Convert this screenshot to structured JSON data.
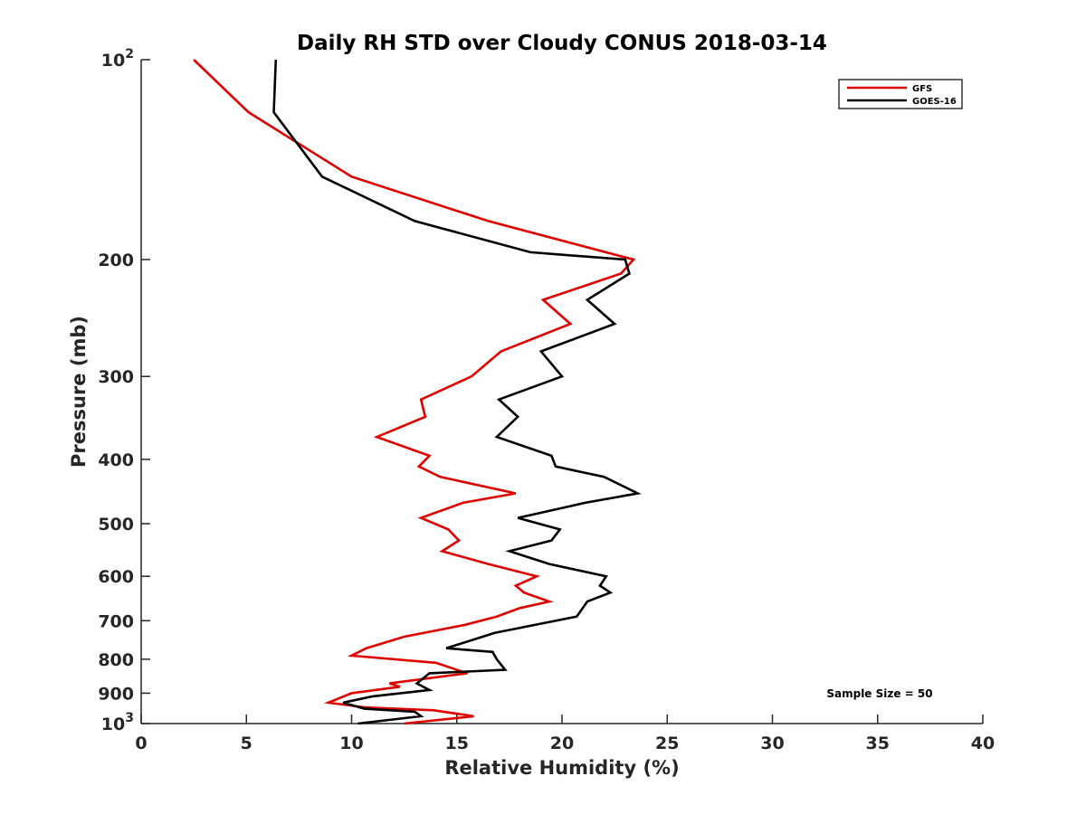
{
  "chart_data": {
    "type": "line",
    "title": "Daily RH STD over Cloudy CONUS 2018-03-14",
    "xlabel": "Relative Humidity (%)",
    "ylabel": "Pressure (mb)",
    "xlim": [
      0,
      40
    ],
    "ylim": [
      100,
      1000
    ],
    "y_scale": "log",
    "y_reversed": true,
    "grid": false,
    "legend_position": "top-right",
    "x_ticks": [
      "0",
      "5",
      "10",
      "15",
      "20",
      "25",
      "30",
      "35",
      "40"
    ],
    "y_ticks": [
      {
        "value": 100,
        "label": "10",
        "exp": "2"
      },
      {
        "value": 200,
        "label": "200",
        "exp": ""
      },
      {
        "value": 300,
        "label": "300",
        "exp": ""
      },
      {
        "value": 400,
        "label": "400",
        "exp": ""
      },
      {
        "value": 500,
        "label": "500",
        "exp": ""
      },
      {
        "value": 600,
        "label": "600",
        "exp": ""
      },
      {
        "value": 700,
        "label": "700",
        "exp": ""
      },
      {
        "value": 800,
        "label": "800",
        "exp": ""
      },
      {
        "value": 900,
        "label": "900",
        "exp": ""
      },
      {
        "value": 1000,
        "label": "10",
        "exp": "3"
      }
    ],
    "annotation": "Sample Size = 50",
    "series": [
      {
        "name": "GFS",
        "color": "#e00000",
        "x": [
          2.5,
          5.1,
          10.0,
          16.5,
          23.4,
          22.8,
          19.1,
          20.4,
          17.1,
          15.7,
          13.3,
          13.5,
          11.2,
          13.7,
          13.2,
          14.2,
          17.8,
          15.3,
          13.3,
          14.6,
          15.1,
          14.3,
          16.5,
          18.8,
          17.8,
          18.2,
          19.4,
          18.0,
          16.9,
          15.4,
          12.5,
          10.7,
          10.0,
          14.0,
          15.5,
          11.8,
          12.3,
          10.0,
          8.9,
          10.6,
          13.9,
          15.8,
          12.5
        ],
        "y": [
          100,
          120,
          150,
          175,
          200,
          210,
          230,
          250,
          275,
          300,
          325,
          345,
          370,
          395,
          410,
          425,
          450,
          465,
          490,
          510,
          530,
          550,
          575,
          600,
          620,
          635,
          655,
          670,
          690,
          710,
          740,
          770,
          790,
          810,
          840,
          870,
          880,
          900,
          930,
          945,
          955,
          975,
          1000
        ]
      },
      {
        "name": "GOES-16",
        "color": "#000000",
        "x": [
          6.4,
          6.3,
          8.6,
          13.0,
          18.5,
          23.0,
          23.2,
          21.2,
          22.5,
          19.0,
          20.0,
          17.0,
          17.9,
          16.9,
          19.5,
          19.7,
          22.0,
          23.6,
          21.1,
          17.9,
          19.9,
          19.5,
          17.5,
          19.4,
          22.1,
          21.8,
          22.3,
          21.2,
          20.7,
          16.8,
          14.5,
          16.7,
          16.9,
          17.3,
          13.7,
          13.1,
          13.7,
          11.0,
          9.6,
          10.6,
          13.0,
          13.3,
          10.3
        ],
        "y": [
          100,
          120,
          150,
          175,
          195,
          200,
          210,
          230,
          250,
          275,
          300,
          325,
          345,
          370,
          395,
          410,
          425,
          450,
          465,
          490,
          510,
          530,
          550,
          575,
          600,
          620,
          635,
          655,
          690,
          730,
          770,
          780,
          800,
          830,
          840,
          870,
          890,
          910,
          930,
          950,
          960,
          975,
          1000
        ]
      }
    ]
  }
}
